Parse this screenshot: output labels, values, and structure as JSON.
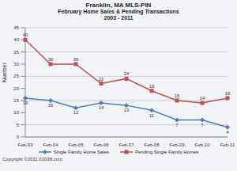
{
  "chart_data": {
    "type": "line",
    "title": "Franklin, MA  MLS-PIN",
    "subtitle": [
      "February Home Sales & Pending Transactions",
      "2003 - 2011"
    ],
    "y_label": "Number",
    "annotations": [
      "Copyright ©2011 02038.com"
    ],
    "categories": [
      "Feb-03",
      "Feb-04",
      "Feb-05",
      "Feb-06",
      "Feb-07",
      "Feb-08",
      "Feb-09",
      "Feb-10",
      "Feb-11"
    ],
    "series": [
      {
        "name": "Single Family Home Sales",
        "color": "#4a7ebb",
        "marker": "diamond",
        "values": [
          16,
          15,
          12,
          14,
          13,
          11,
          7,
          7,
          4
        ]
      },
      {
        "name": "Pending Single Family Homes",
        "color": "#c0504d",
        "marker": "square",
        "values": [
          40,
          30,
          30,
          22,
          24,
          19,
          15,
          14,
          16
        ]
      }
    ],
    "ylim": [
      0,
      45
    ],
    "yticks": [
      0,
      5,
      10,
      15,
      20,
      25,
      30,
      35,
      40,
      45
    ],
    "grid": true,
    "legend": "bottom",
    "data_labels": true
  }
}
